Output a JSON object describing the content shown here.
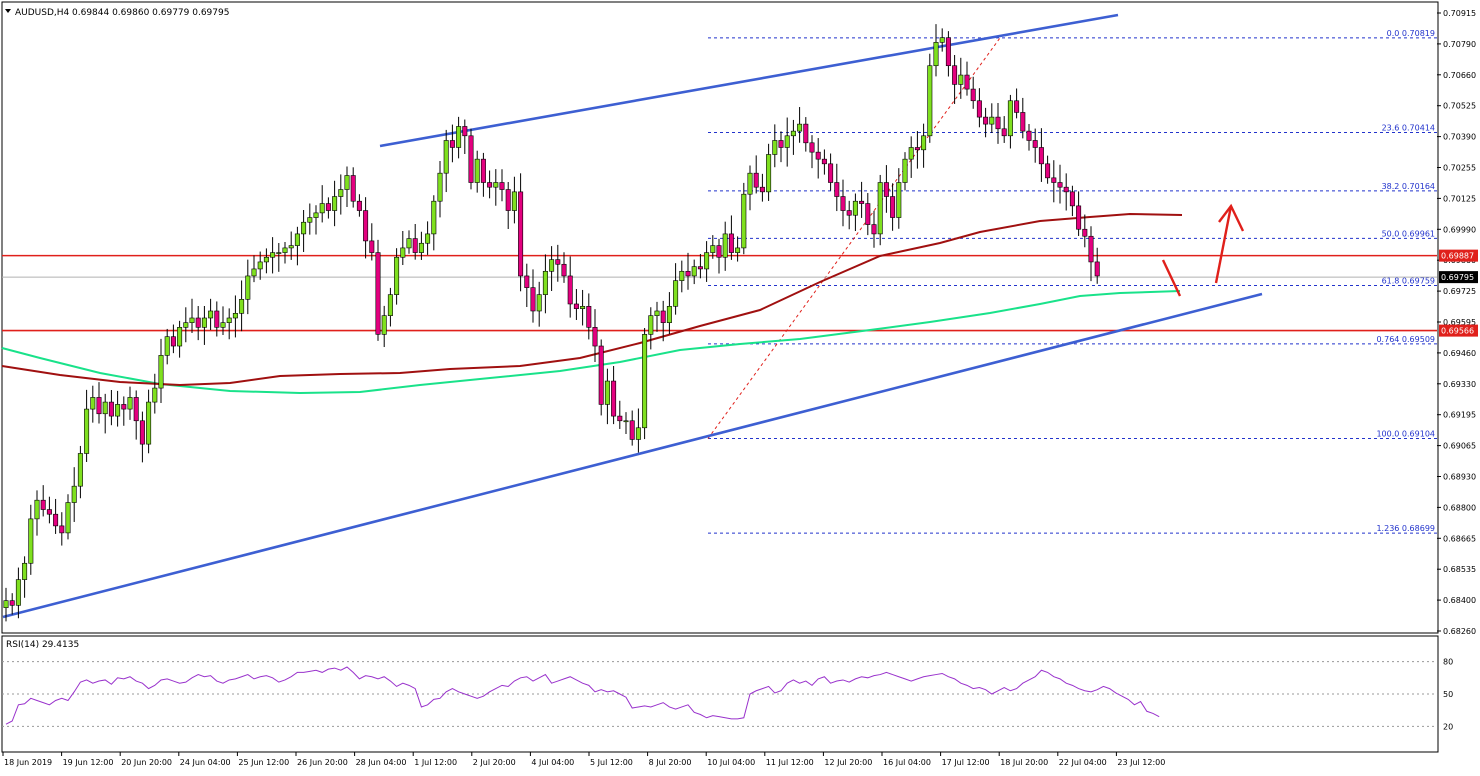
{
  "header": {
    "symbol": "AUDUSD,H4",
    "ohlc": "0.69844 0.69860 0.69779 0.69795"
  },
  "rsi": {
    "label": "RSI(14) 29.4135",
    "levels": [
      "80",
      "50",
      "20"
    ],
    "values": [
      22,
      25,
      40,
      41,
      46,
      44,
      42,
      40,
      44,
      46,
      44,
      52,
      61,
      63,
      60,
      62,
      63,
      59,
      65,
      64,
      66,
      62,
      60,
      55,
      58,
      63,
      64,
      62,
      60,
      61,
      65,
      68,
      66,
      67,
      62,
      60,
      63,
      64,
      66,
      68,
      64,
      66,
      67,
      65,
      61,
      63,
      66,
      70,
      70,
      71,
      72,
      70,
      73,
      74,
      72,
      75,
      70,
      64,
      67,
      66,
      64,
      66,
      62,
      57,
      60,
      58,
      55,
      38,
      40,
      45,
      46,
      52,
      55,
      52,
      50,
      48,
      46,
      48,
      52,
      55,
      58,
      57,
      62,
      65,
      66,
      62,
      65,
      68,
      60,
      62,
      64,
      66,
      63,
      60,
      58,
      52,
      54,
      52,
      53,
      50,
      47,
      37,
      38,
      39,
      38,
      40,
      42,
      38,
      36,
      38,
      40,
      33,
      31,
      28,
      30,
      29,
      28,
      27,
      27,
      28,
      50,
      53,
      55,
      57,
      51,
      53,
      60,
      63,
      60,
      62,
      58,
      64,
      66,
      60,
      62,
      63,
      61,
      64,
      66,
      65,
      67,
      68,
      70,
      68,
      66,
      64,
      62,
      64,
      66,
      67,
      68,
      69,
      66,
      64,
      60,
      58,
      55,
      56,
      54,
      50,
      53,
      56,
      53,
      55,
      60,
      63,
      66,
      72,
      70,
      66,
      64,
      60,
      58,
      55,
      53,
      52,
      54,
      57,
      55,
      51,
      48,
      45,
      40,
      43,
      34,
      32,
      29
    ]
  },
  "price_axis": {
    "labels": [
      "0.70915",
      "0.70790",
      "0.70660",
      "0.70525",
      "0.70390",
      "0.70255",
      "0.70125",
      "0.69990",
      "0.69860",
      "0.69725",
      "0.69595",
      "0.69460",
      "0.69330",
      "0.69195",
      "0.69065",
      "0.68930",
      "0.68800",
      "0.68665",
      "0.68535",
      "0.68400",
      "0.68260"
    ],
    "tags": [
      {
        "text": "0.69887",
        "bg": "#e0201b",
        "fg": "#ffffff",
        "price": 0.69887
      },
      {
        "text": "0.69795",
        "bg": "#000000",
        "fg": "#ffffff",
        "price": 0.69795
      },
      {
        "text": "0.69566",
        "bg": "#e0201b",
        "fg": "#ffffff",
        "price": 0.69566
      }
    ]
  },
  "time_axis": {
    "labels": [
      "18 Jun 2019",
      "19 Jun 12:00",
      "20 Jun 20:00",
      "24 Jun 04:00",
      "25 Jun 12:00",
      "26 Jun 20:00",
      "28 Jun 04:00",
      "1 Jul 12:00",
      "2 Jul 20:00",
      "4 Jul 04:00",
      "5 Jul 12:00",
      "8 Jul 20:00",
      "10 Jul 04:00",
      "11 Jul 12:00",
      "12 Jul 20:00",
      "16 Jul 04:00",
      "17 Jul 12:00",
      "18 Jul 20:00",
      "22 Jul 04:00",
      "23 Jul 12:00"
    ]
  },
  "fibonacci": [
    {
      "label": "0.0 0.70819",
      "price": 0.70819
    },
    {
      "label": "23.6 0.70414",
      "price": 0.70414
    },
    {
      "label": "38.2 0.70164",
      "price": 0.70164
    },
    {
      "label": "50.0 0.69961",
      "price": 0.69961
    },
    {
      "label": "61.8 0.69759",
      "price": 0.69759
    },
    {
      "label": "0.764 0.69509",
      "price": 0.69509
    },
    {
      "label": "100.0 0.69104",
      "price": 0.69104
    },
    {
      "label": "1.236 0.68699",
      "price": 0.68699
    }
  ],
  "colors": {
    "bull_candle": "#7fe01f",
    "bear_candle": "#e3007f",
    "wick": "#000000",
    "trendline": "#3d5fd2",
    "support_resistance": "#e0201b",
    "ma_fast": "#a01010",
    "ma_slow": "#19e28a",
    "fib": "#2233cc",
    "rsi_line": "#9932cc",
    "annotation_arrow": "#e0201b"
  },
  "chart_data": {
    "type": "candlestick",
    "symbol": "AUDUSD",
    "timeframe": "H4",
    "ylim": [
      0.6826,
      0.7098
    ],
    "horizontal_levels": [
      0.69887,
      0.69566
    ],
    "close": [
      0.6841,
      0.6839,
      0.685,
      0.6857,
      0.6876,
      0.6884,
      0.688,
      0.6878,
      0.6873,
      0.687,
      0.6883,
      0.689,
      0.6904,
      0.6923,
      0.6928,
      0.6921,
      0.6926,
      0.692,
      0.6925,
      0.6923,
      0.6928,
      0.6918,
      0.6908,
      0.6926,
      0.6932,
      0.6946,
      0.6954,
      0.695,
      0.6958,
      0.696,
      0.6962,
      0.6958,
      0.6962,
      0.6965,
      0.6958,
      0.696,
      0.6962,
      0.6964,
      0.697,
      0.698,
      0.6983,
      0.6986,
      0.6988,
      0.699,
      0.699,
      0.6992,
      0.6993,
      0.6998,
      0.7003,
      0.7005,
      0.7007,
      0.7011,
      0.7008,
      0.7014,
      0.7017,
      0.7023,
      0.7012,
      0.7008,
      0.6995,
      0.699,
      0.6955,
      0.6963,
      0.6972,
      0.6988,
      0.6992,
      0.6996,
      0.699,
      0.6994,
      0.6998,
      0.7012,
      0.7024,
      0.7038,
      0.7035,
      0.7044,
      0.704,
      0.702,
      0.703,
      0.702,
      0.7018,
      0.702,
      0.7017,
      0.7008,
      0.7016,
      0.698,
      0.6975,
      0.6965,
      0.6972,
      0.6982,
      0.6987,
      0.6985,
      0.698,
      0.6968,
      0.6966,
      0.6967,
      0.6958,
      0.695,
      0.6925,
      0.6935,
      0.692,
      0.6918,
      0.6918,
      0.691,
      0.6915,
      0.6955,
      0.6963,
      0.6965,
      0.696,
      0.6967,
      0.6978,
      0.6982,
      0.698,
      0.6984,
      0.6983,
      0.699,
      0.6993,
      0.6988,
      0.6998,
      0.699,
      0.6992,
      0.7015,
      0.7024,
      0.7018,
      0.7016,
      0.7032,
      0.7038,
      0.7035,
      0.704,
      0.7042,
      0.7045,
      0.7037,
      0.7033,
      0.703,
      0.7028,
      0.702,
      0.7014,
      0.7008,
      0.7006,
      0.7012,
      0.7011,
      0.7002,
      0.6998,
      0.702,
      0.7014,
      0.7005,
      0.702,
      0.703,
      0.7035,
      0.7034,
      0.704,
      0.707,
      0.708,
      0.7082,
      0.707,
      0.7062,
      0.7066,
      0.706,
      0.7055,
      0.7048,
      0.7045,
      0.7048,
      0.7043,
      0.704,
      0.7055,
      0.705,
      0.7042,
      0.7038,
      0.7035,
      0.7028,
      0.7022,
      0.702,
      0.7018,
      0.7016,
      0.701,
      0.7,
      0.6997,
      0.6986,
      0.698
    ]
  }
}
